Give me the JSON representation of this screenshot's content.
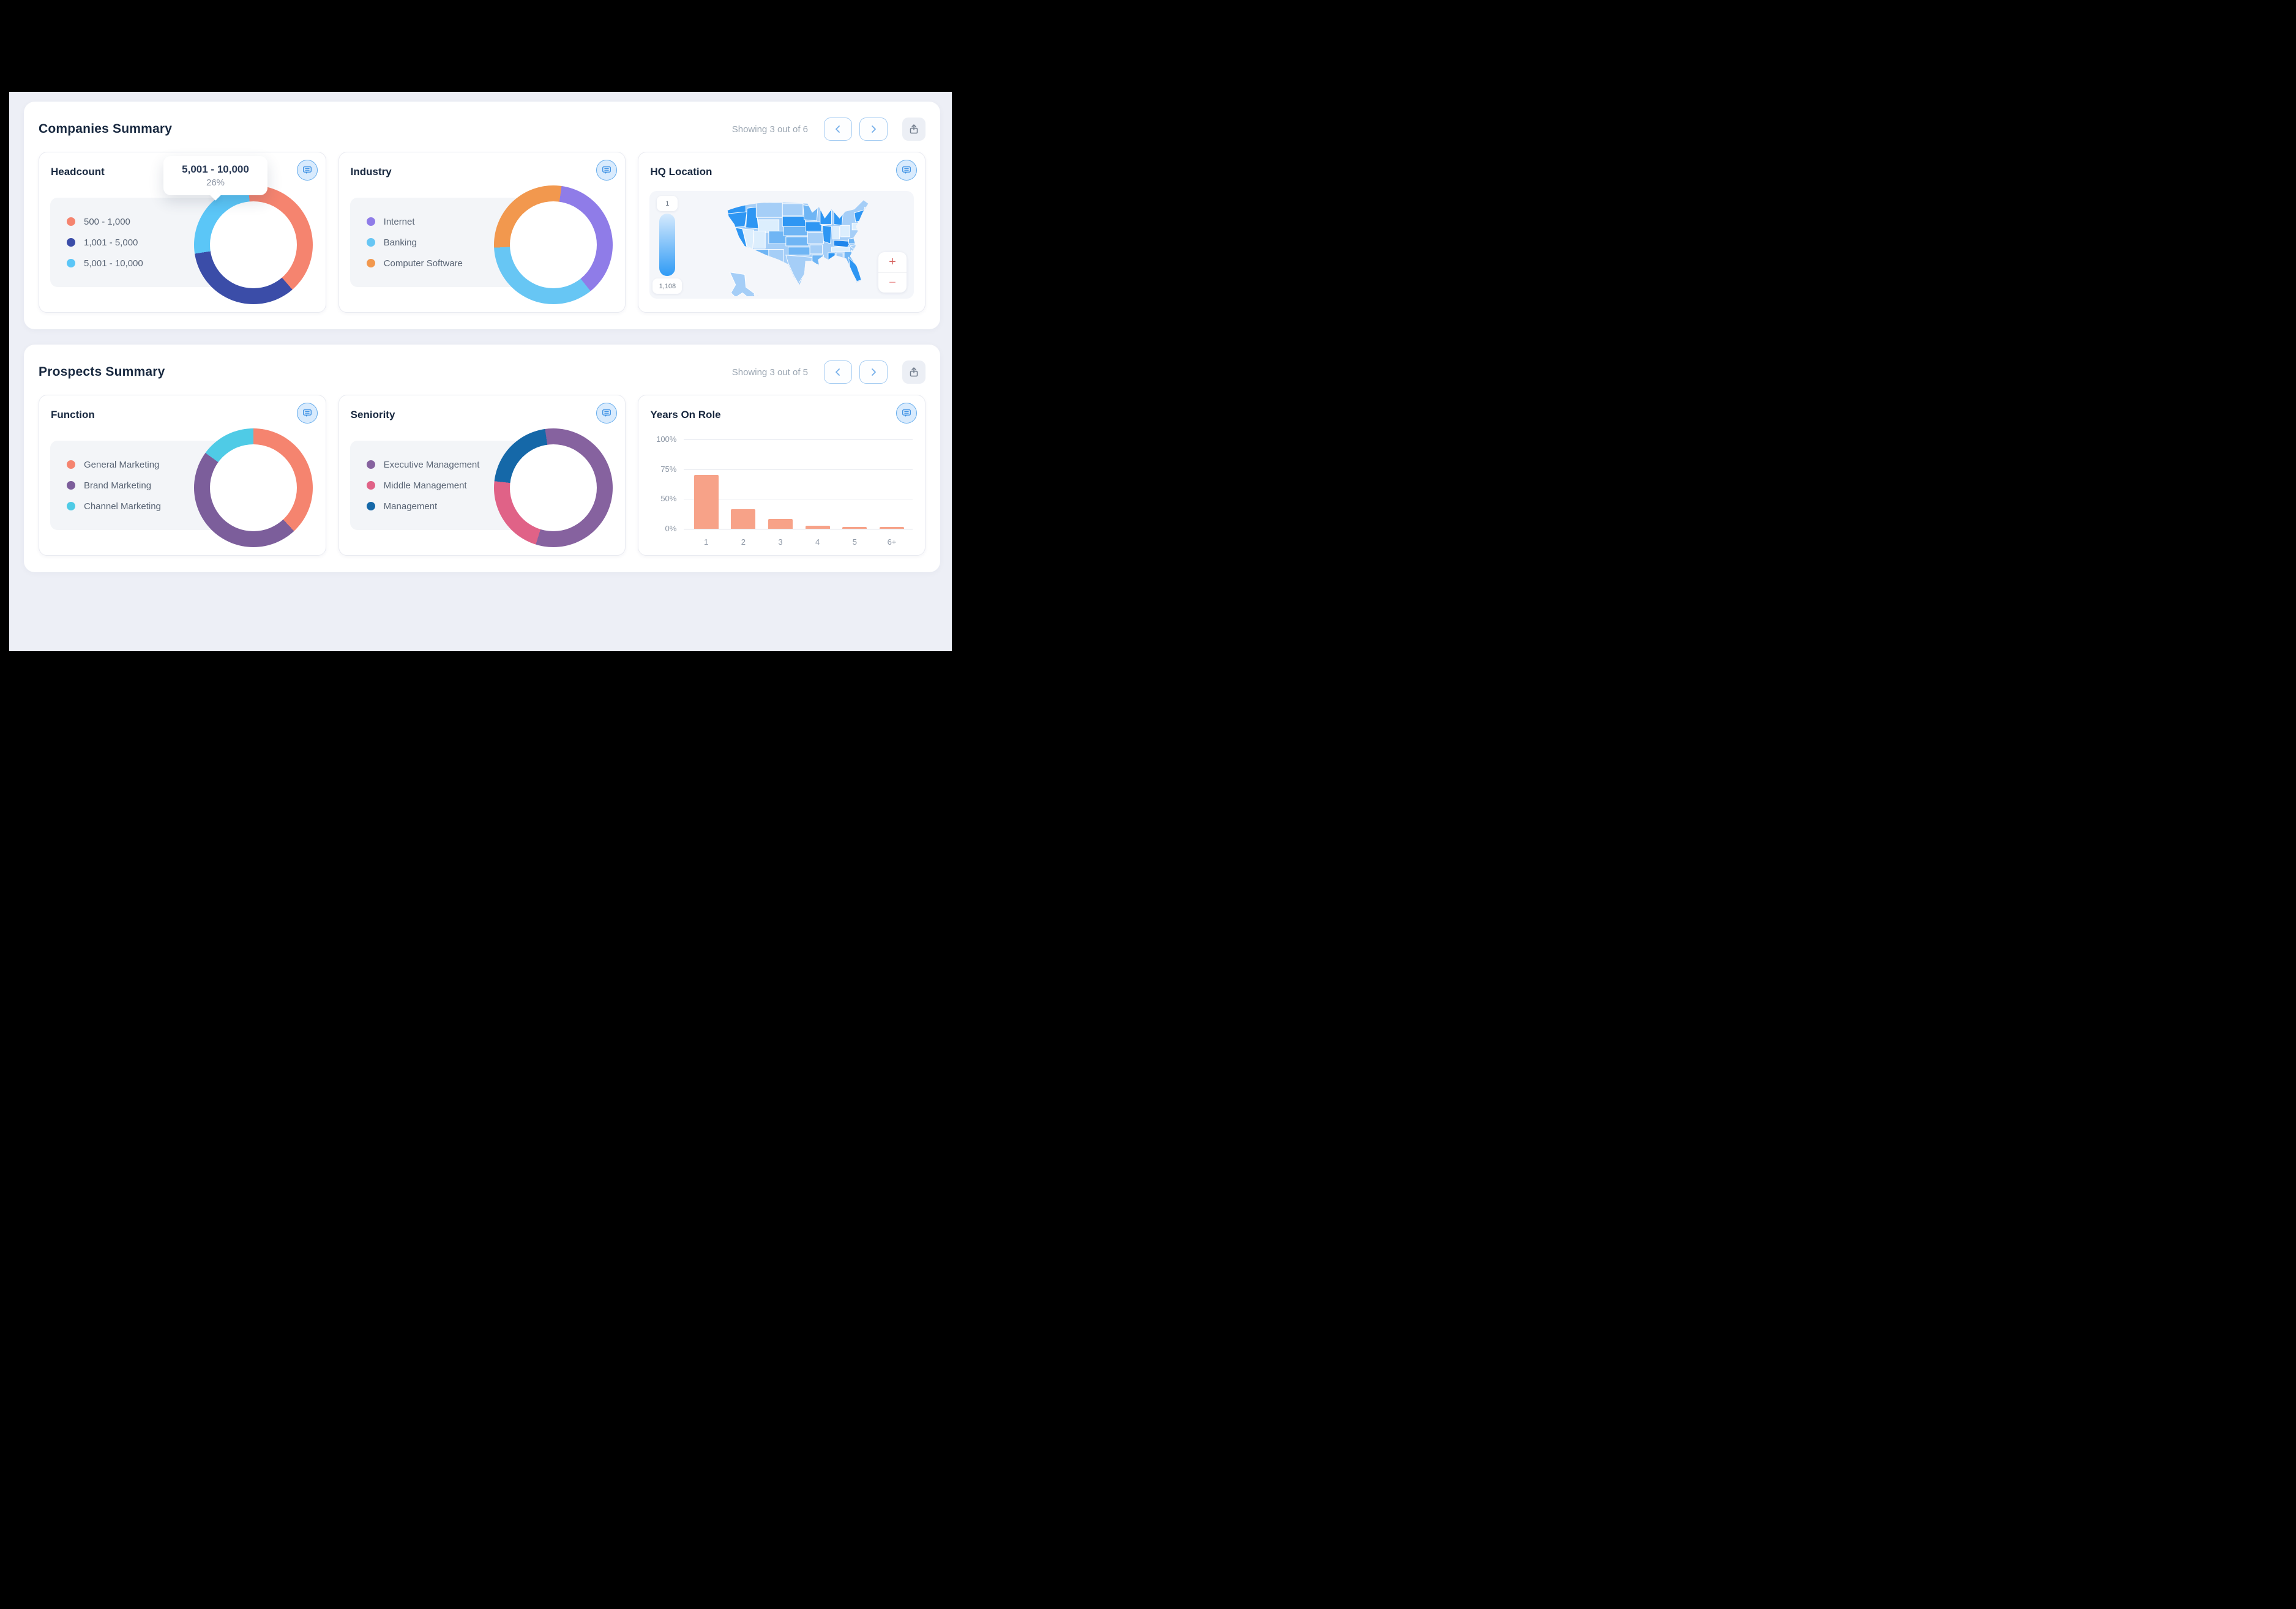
{
  "window": {
    "canvas_bg": "#000000",
    "page_bg": "#edeff6"
  },
  "sections": [
    {
      "title": "Companies Summary",
      "showing": "Showing 3 out of 6"
    },
    {
      "title": "Prospects Summary",
      "showing": "Showing 3 out of 5"
    }
  ],
  "colors": {
    "title_text": "#18283f",
    "muted_text": "#9aa5b1",
    "legend_text": "#5a6575",
    "accent_blue": "#63abec",
    "nav_chevron": "#74aeea",
    "share_icon": "#717c8c",
    "zoom_plus": "#d5605c",
    "zoom_minus": "#eda0a0"
  },
  "chart_data": [
    {
      "type": "pie",
      "title": "Headcount",
      "labels": [
        "500 - 1,000",
        "1,001 - 5,000",
        "5,001 - 10,000"
      ],
      "values": [
        40,
        34,
        26
      ],
      "colors": [
        "#F5846F",
        "#3B4DA8",
        "#5BC6F7"
      ],
      "start_angle_deg": -5,
      "legend_position": "left",
      "tooltip": {
        "title": "5,001 - 10,000",
        "value": "26%"
      }
    },
    {
      "type": "pie",
      "title": "Industry",
      "labels": [
        "Internet",
        "Banking",
        "Computer Software"
      ],
      "values": [
        37,
        35,
        28
      ],
      "colors": [
        "#8F7CE8",
        "#67C6F4",
        "#F2984E"
      ],
      "start_angle_deg": 8,
      "legend_position": "left"
    },
    {
      "type": "map",
      "title": "HQ Location",
      "region": "United States",
      "scale_min_label": "1",
      "scale_max_label": "1,108",
      "zoom_in_label": "+",
      "zoom_out_label": "−",
      "scale_colors": [
        "#D6EAFD",
        "#2F9BF5"
      ],
      "state_shades": [
        "#DCEEFD",
        "#A5CEF7",
        "#6FB5F4",
        "#2E96F3",
        "#1F86EC"
      ]
    },
    {
      "type": "pie",
      "title": "Function",
      "labels": [
        "General Marketing",
        "Brand Marketing",
        "Channel Marketing"
      ],
      "values": [
        38,
        47,
        15
      ],
      "colors": [
        "#F5846F",
        "#7C5E9B",
        "#4FCBE6"
      ],
      "start_angle_deg": 0,
      "legend_position": "left"
    },
    {
      "type": "pie",
      "title": "Seniority",
      "labels": [
        "Executive Management",
        "Middle Management",
        "Management"
      ],
      "values": [
        57,
        22,
        21
      ],
      "colors": [
        "#86629F",
        "#E06287",
        "#1568A8"
      ],
      "start_angle_deg": -8,
      "legend_position": "left"
    },
    {
      "type": "bar",
      "title": "Years On Role",
      "categories": [
        "1",
        "2",
        "3",
        "4",
        "5",
        "6+"
      ],
      "values": [
        70,
        33,
        16,
        5,
        3,
        3
      ],
      "ytick_labels": [
        "100%",
        "75%",
        "50%",
        "0%"
      ],
      "bar_color": "#F7A288",
      "grid": true,
      "xlabel": "",
      "ylabel": ""
    }
  ]
}
